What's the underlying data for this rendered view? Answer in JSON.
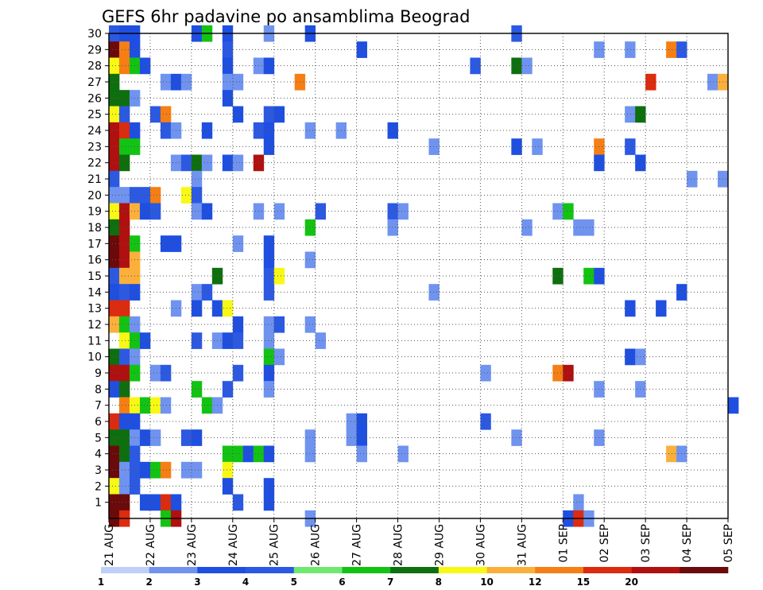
{
  "chart_data": {
    "type": "heatmap",
    "title": "GEFS 6hr padavine po ansamblima Beograd",
    "y_ticks": [
      "1",
      "2",
      "3",
      "4",
      "5",
      "6",
      "7",
      "8",
      "9",
      "10",
      "11",
      "12",
      "13",
      "14",
      "15",
      "16",
      "17",
      "18",
      "19",
      "20",
      "21",
      "22",
      "23",
      "24",
      "25",
      "26",
      "27",
      "28",
      "29",
      "30"
    ],
    "x_ticks": [
      "21 AUG",
      "22 AUG",
      "23 AUG",
      "24 AUG",
      "25 AUG",
      "26 AUG",
      "27 AUG",
      "28 AUG",
      "29 AUG",
      "30 AUG",
      "31 AUG",
      "01 SEP",
      "02 SEP",
      "03 SEP",
      "04 SEP",
      "05 SEP"
    ],
    "ylim": [
      0,
      30
    ],
    "time_steps_per_day": 4,
    "grid": true,
    "colorbar": {
      "ticks": [
        "1",
        "2",
        "3",
        "4",
        "5",
        "6",
        "7",
        "8",
        "10",
        "12",
        "15",
        "20"
      ],
      "colors": [
        "#bfcff8",
        "#6f93ef",
        "#1f4fe0",
        "#2c59e2",
        "#6fe86f",
        "#13c313",
        "#0e6f0e",
        "#f8f815",
        "#fbb03b",
        "#f57f14",
        "#dc2b0f",
        "#b01010",
        "#6b0a0a"
      ]
    },
    "cells": [
      [
        0,
        30,
        3
      ],
      [
        1,
        30,
        2
      ],
      [
        2,
        30,
        2
      ],
      [
        8,
        30,
        2
      ],
      [
        9,
        30,
        5
      ],
      [
        11,
        30,
        2
      ],
      [
        15,
        30,
        1
      ],
      [
        19,
        30,
        2
      ],
      [
        39,
        30,
        3
      ],
      [
        0,
        29,
        12
      ],
      [
        1,
        29,
        9
      ],
      [
        2,
        29,
        2
      ],
      [
        11,
        29,
        3
      ],
      [
        24,
        29,
        2
      ],
      [
        47,
        29,
        1
      ],
      [
        50,
        29,
        1
      ],
      [
        54,
        29,
        9
      ],
      [
        55,
        29,
        3
      ],
      [
        0,
        28,
        7
      ],
      [
        1,
        28,
        9
      ],
      [
        2,
        28,
        5
      ],
      [
        3,
        28,
        2
      ],
      [
        11,
        28,
        2
      ],
      [
        14,
        28,
        1
      ],
      [
        15,
        28,
        2
      ],
      [
        35,
        28,
        3
      ],
      [
        39,
        28,
        6
      ],
      [
        40,
        28,
        1
      ],
      [
        0,
        27,
        6
      ],
      [
        5,
        27,
        1
      ],
      [
        6,
        27,
        2
      ],
      [
        7,
        27,
        1
      ],
      [
        11,
        27,
        1
      ],
      [
        12,
        27,
        1
      ],
      [
        18,
        27,
        9
      ],
      [
        52,
        27,
        10
      ],
      [
        58,
        27,
        1
      ],
      [
        59,
        27,
        8
      ],
      [
        0,
        26,
        6
      ],
      [
        1,
        26,
        6
      ],
      [
        2,
        26,
        1
      ],
      [
        11,
        26,
        2
      ],
      [
        0,
        25,
        7
      ],
      [
        1,
        25,
        3
      ],
      [
        4,
        25,
        3
      ],
      [
        5,
        25,
        9
      ],
      [
        12,
        25,
        2
      ],
      [
        15,
        25,
        3
      ],
      [
        16,
        25,
        2
      ],
      [
        50,
        25,
        1
      ],
      [
        51,
        25,
        6
      ],
      [
        0,
        24,
        11
      ],
      [
        1,
        24,
        10
      ],
      [
        2,
        24,
        2
      ],
      [
        5,
        24,
        3
      ],
      [
        6,
        24,
        1
      ],
      [
        9,
        24,
        2
      ],
      [
        14,
        24,
        3
      ],
      [
        15,
        24,
        2
      ],
      [
        19,
        24,
        1
      ],
      [
        22,
        24,
        1
      ],
      [
        27,
        24,
        2
      ],
      [
        0,
        23,
        11
      ],
      [
        1,
        23,
        5
      ],
      [
        2,
        23,
        5
      ],
      [
        15,
        23,
        2
      ],
      [
        31,
        23,
        1
      ],
      [
        39,
        23,
        2
      ],
      [
        41,
        23,
        1
      ],
      [
        47,
        23,
        9
      ],
      [
        50,
        23,
        3
      ],
      [
        0,
        22,
        11
      ],
      [
        1,
        22,
        6
      ],
      [
        6,
        22,
        1
      ],
      [
        7,
        22,
        3
      ],
      [
        8,
        22,
        6
      ],
      [
        9,
        22,
        1
      ],
      [
        11,
        22,
        2
      ],
      [
        12,
        22,
        1
      ],
      [
        14,
        22,
        11
      ],
      [
        47,
        22,
        2
      ],
      [
        51,
        22,
        2
      ],
      [
        0,
        21,
        3
      ],
      [
        8,
        21,
        1
      ],
      [
        56,
        21,
        1
      ],
      [
        59,
        21,
        1
      ],
      [
        0,
        20,
        1
      ],
      [
        1,
        20,
        1
      ],
      [
        2,
        20,
        3
      ],
      [
        3,
        20,
        3
      ],
      [
        4,
        20,
        9
      ],
      [
        7,
        20,
        7
      ],
      [
        8,
        20,
        3
      ],
      [
        0,
        19,
        7
      ],
      [
        1,
        19,
        11
      ],
      [
        2,
        19,
        8
      ],
      [
        3,
        19,
        2
      ],
      [
        4,
        19,
        3
      ],
      [
        8,
        19,
        1
      ],
      [
        9,
        19,
        2
      ],
      [
        14,
        19,
        1
      ],
      [
        16,
        19,
        1
      ],
      [
        20,
        19,
        3
      ],
      [
        27,
        19,
        3
      ],
      [
        28,
        19,
        1
      ],
      [
        43,
        19,
        1
      ],
      [
        44,
        19,
        5
      ],
      [
        0,
        18,
        6
      ],
      [
        1,
        18,
        11
      ],
      [
        19,
        18,
        5
      ],
      [
        27,
        18,
        1
      ],
      [
        40,
        18,
        1
      ],
      [
        45,
        18,
        1
      ],
      [
        46,
        18,
        1
      ],
      [
        0,
        17,
        12
      ],
      [
        1,
        17,
        11
      ],
      [
        2,
        17,
        5
      ],
      [
        5,
        17,
        2
      ],
      [
        6,
        17,
        2
      ],
      [
        12,
        17,
        1
      ],
      [
        15,
        17,
        2
      ],
      [
        0,
        16,
        12
      ],
      [
        1,
        16,
        11
      ],
      [
        2,
        16,
        8
      ],
      [
        15,
        16,
        2
      ],
      [
        19,
        16,
        1
      ],
      [
        0,
        15,
        3
      ],
      [
        1,
        15,
        8
      ],
      [
        2,
        15,
        8
      ],
      [
        10,
        15,
        6
      ],
      [
        15,
        15,
        3
      ],
      [
        16,
        15,
        7
      ],
      [
        43,
        15,
        6
      ],
      [
        46,
        15,
        5
      ],
      [
        47,
        15,
        2
      ],
      [
        0,
        14,
        2
      ],
      [
        1,
        14,
        3
      ],
      [
        2,
        14,
        2
      ],
      [
        8,
        14,
        1
      ],
      [
        9,
        14,
        3
      ],
      [
        15,
        14,
        3
      ],
      [
        31,
        14,
        1
      ],
      [
        55,
        14,
        2
      ],
      [
        0,
        13,
        10
      ],
      [
        1,
        13,
        10
      ],
      [
        6,
        13,
        1
      ],
      [
        8,
        13,
        2
      ],
      [
        10,
        13,
        2
      ],
      [
        11,
        13,
        7
      ],
      [
        50,
        13,
        2
      ],
      [
        53,
        13,
        2
      ],
      [
        0,
        12,
        8
      ],
      [
        1,
        12,
        5
      ],
      [
        2,
        12,
        1
      ],
      [
        12,
        12,
        2
      ],
      [
        15,
        12,
        1
      ],
      [
        16,
        12,
        3
      ],
      [
        19,
        12,
        1
      ],
      [
        1,
        11,
        7
      ],
      [
        2,
        11,
        5
      ],
      [
        3,
        11,
        2
      ],
      [
        8,
        11,
        3
      ],
      [
        10,
        11,
        1
      ],
      [
        11,
        11,
        2
      ],
      [
        12,
        11,
        3
      ],
      [
        15,
        11,
        1
      ],
      [
        20,
        11,
        1
      ],
      [
        0,
        10,
        6
      ],
      [
        1,
        10,
        3
      ],
      [
        2,
        10,
        1
      ],
      [
        15,
        10,
        5
      ],
      [
        16,
        10,
        1
      ],
      [
        50,
        10,
        2
      ],
      [
        51,
        10,
        1
      ],
      [
        0,
        9,
        11
      ],
      [
        1,
        9,
        11
      ],
      [
        2,
        9,
        5
      ],
      [
        4,
        9,
        1
      ],
      [
        5,
        9,
        3
      ],
      [
        12,
        9,
        3
      ],
      [
        15,
        9,
        2
      ],
      [
        36,
        9,
        1
      ],
      [
        43,
        9,
        9
      ],
      [
        44,
        9,
        11
      ],
      [
        0,
        8,
        2
      ],
      [
        1,
        8,
        6
      ],
      [
        8,
        8,
        5
      ],
      [
        11,
        8,
        3
      ],
      [
        15,
        8,
        1
      ],
      [
        47,
        8,
        1
      ],
      [
        51,
        8,
        1
      ],
      [
        1,
        7,
        9
      ],
      [
        2,
        7,
        7
      ],
      [
        3,
        7,
        5
      ],
      [
        4,
        7,
        7
      ],
      [
        5,
        7,
        1
      ],
      [
        9,
        7,
        5
      ],
      [
        10,
        7,
        1
      ],
      [
        60,
        7,
        2
      ],
      [
        0,
        6,
        10
      ],
      [
        1,
        6,
        2
      ],
      [
        2,
        6,
        2
      ],
      [
        23,
        6,
        1
      ],
      [
        24,
        6,
        2
      ],
      [
        36,
        6,
        3
      ],
      [
        0,
        5,
        6
      ],
      [
        1,
        5,
        6
      ],
      [
        2,
        5,
        1
      ],
      [
        3,
        5,
        2
      ],
      [
        4,
        5,
        1
      ],
      [
        7,
        5,
        3
      ],
      [
        8,
        5,
        2
      ],
      [
        19,
        5,
        1
      ],
      [
        23,
        5,
        1
      ],
      [
        24,
        5,
        2
      ],
      [
        39,
        5,
        1
      ],
      [
        47,
        5,
        1
      ],
      [
        0,
        4,
        12
      ],
      [
        1,
        4,
        6
      ],
      [
        2,
        4,
        3
      ],
      [
        11,
        4,
        5
      ],
      [
        12,
        4,
        5
      ],
      [
        13,
        4,
        2
      ],
      [
        14,
        4,
        5
      ],
      [
        15,
        4,
        2
      ],
      [
        19,
        4,
        1
      ],
      [
        24,
        4,
        1
      ],
      [
        28,
        4,
        1
      ],
      [
        54,
        4,
        8
      ],
      [
        55,
        4,
        1
      ],
      [
        0,
        3,
        12
      ],
      [
        1,
        3,
        1
      ],
      [
        2,
        3,
        3
      ],
      [
        3,
        3,
        2
      ],
      [
        4,
        3,
        5
      ],
      [
        5,
        3,
        9
      ],
      [
        7,
        3,
        1
      ],
      [
        8,
        3,
        1
      ],
      [
        11,
        3,
        7
      ],
      [
        0,
        2,
        7
      ],
      [
        1,
        2,
        1
      ],
      [
        2,
        2,
        3
      ],
      [
        11,
        2,
        2
      ],
      [
        15,
        2,
        2
      ],
      [
        0,
        1,
        12
      ],
      [
        1,
        1,
        12
      ],
      [
        3,
        1,
        2
      ],
      [
        4,
        1,
        2
      ],
      [
        5,
        1,
        10
      ],
      [
        6,
        1,
        2
      ],
      [
        12,
        1,
        3
      ],
      [
        15,
        1,
        2
      ],
      [
        45,
        1,
        1
      ],
      [
        0,
        0,
        12
      ],
      [
        1,
        0,
        10
      ],
      [
        5,
        0,
        5
      ],
      [
        6,
        0,
        11
      ],
      [
        19,
        0,
        1
      ],
      [
        44,
        0,
        2
      ],
      [
        45,
        0,
        10
      ],
      [
        46,
        0,
        1
      ]
    ]
  }
}
